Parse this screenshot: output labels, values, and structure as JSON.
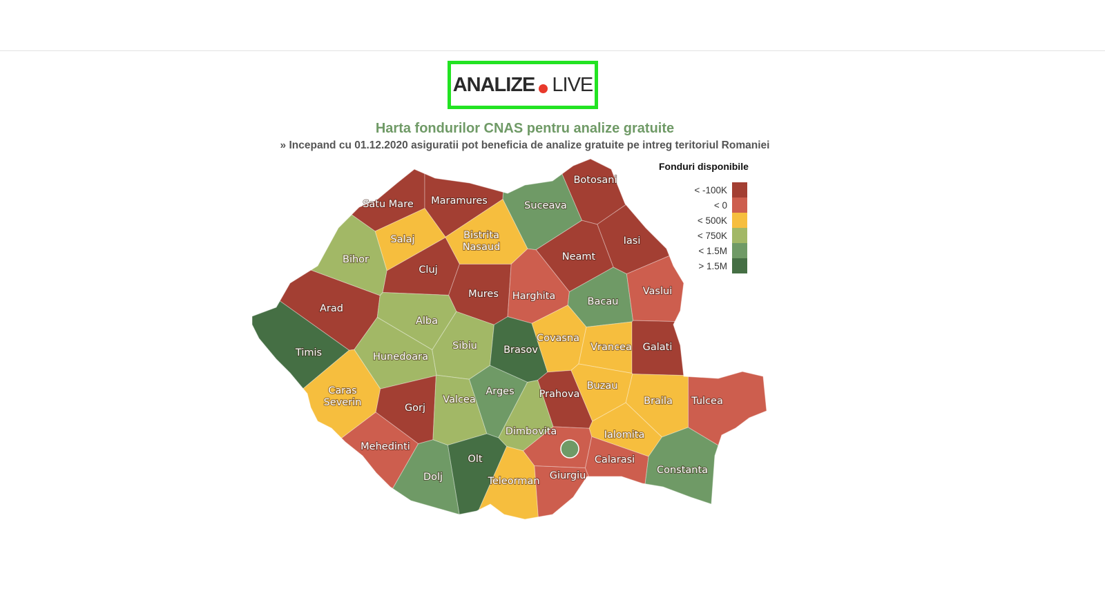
{
  "logo": {
    "text_bold": "ANALIZE",
    "text_light": "LIVE",
    "border_color": "#22e322",
    "dot_color": "#e8392b"
  },
  "title": "Harta fondurilor CNAS pentru analize gratuite",
  "subtitle": "» Incepand cu 01.12.2020 asiguratii pot beneficia de analize gratuite pe intreg teritoriul Romaniei",
  "legend": {
    "title": "Fonduri disponibile",
    "items": [
      {
        "label": "< -100K",
        "color": "#a33f33"
      },
      {
        "label": "< 0",
        "color": "#cd5e4e"
      },
      {
        "label": "< 500K",
        "color": "#f6be3e"
      },
      {
        "label": "< 750K",
        "color": "#a2b866"
      },
      {
        "label": "< 1.5M",
        "color": "#6f9a66"
      },
      {
        "label": "> 1.5M",
        "color": "#456f44"
      }
    ]
  },
  "counties": [
    {
      "name": "Satu Mare",
      "cat": 0
    },
    {
      "name": "Maramures",
      "cat": 0
    },
    {
      "name": "Botosani",
      "cat": 0
    },
    {
      "name": "Suceava",
      "cat": 4
    },
    {
      "name": "Salaj",
      "cat": 2
    },
    {
      "name": "Bistrita Nasaud",
      "lines": [
        "Bistrita",
        "Nasaud"
      ],
      "cat": 2
    },
    {
      "name": "Iasi",
      "cat": 0
    },
    {
      "name": "Neamt",
      "cat": 0
    },
    {
      "name": "Bihor",
      "cat": 3
    },
    {
      "name": "Cluj",
      "cat": 0
    },
    {
      "name": "Mures",
      "cat": 0
    },
    {
      "name": "Harghita",
      "cat": 1
    },
    {
      "name": "Bacau",
      "cat": 4
    },
    {
      "name": "Vaslui",
      "cat": 1
    },
    {
      "name": "Arad",
      "cat": 0
    },
    {
      "name": "Alba",
      "cat": 3
    },
    {
      "name": "Timis",
      "cat": 5
    },
    {
      "name": "Hunedoara",
      "cat": 3
    },
    {
      "name": "Sibiu",
      "cat": 3
    },
    {
      "name": "Brasov",
      "cat": 5
    },
    {
      "name": "Covasna",
      "cat": 2
    },
    {
      "name": "Vrancea",
      "cat": 2
    },
    {
      "name": "Galati",
      "cat": 0
    },
    {
      "name": "Caras Severin",
      "lines": [
        "Caras",
        "Severin"
      ],
      "cat": 2
    },
    {
      "name": "Gorj",
      "cat": 0
    },
    {
      "name": "Valcea",
      "cat": 3
    },
    {
      "name": "Arges",
      "cat": 4
    },
    {
      "name": "Prahova",
      "cat": 0
    },
    {
      "name": "Buzau",
      "cat": 2
    },
    {
      "name": "Braila",
      "cat": 2
    },
    {
      "name": "Tulcea",
      "cat": 1
    },
    {
      "name": "Mehedinti",
      "cat": 1
    },
    {
      "name": "Dimbovita",
      "cat": 3
    },
    {
      "name": "Ialomita",
      "cat": 2
    },
    {
      "name": "Olt",
      "cat": 5
    },
    {
      "name": "Dolj",
      "cat": 4
    },
    {
      "name": "Teleorman",
      "cat": 2
    },
    {
      "name": "Giurgiu",
      "cat": 1
    },
    {
      "name": "Calarasi",
      "cat": 1
    },
    {
      "name": "Constanta",
      "cat": 4
    },
    {
      "cat": 1
    }
  ],
  "bucharest": {
    "cat": 4
  }
}
